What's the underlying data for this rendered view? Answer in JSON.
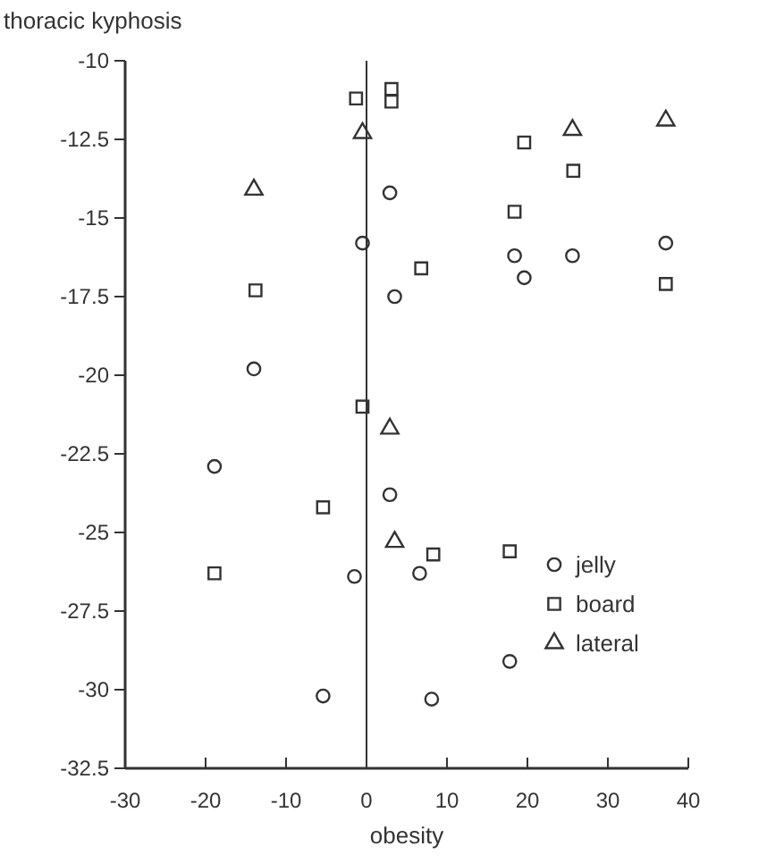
{
  "chart_data": {
    "type": "scatter",
    "xlabel": "obesity",
    "ylabel": "thoracic kyphosis",
    "xlim": [
      -30,
      40
    ],
    "xticks": [
      -30,
      -20,
      -10,
      0,
      10,
      20,
      30,
      40
    ],
    "ylim": [
      -32.5,
      -10
    ],
    "yticks": [
      -32.5,
      -30,
      -27.5,
      -25,
      -22.5,
      -20,
      -17.5,
      -15,
      -12.5,
      -10
    ],
    "grid": false,
    "legend": "bottom right",
    "ref_lines": [
      {
        "axis": "x",
        "value": 0,
        "color": "#333333"
      }
    ],
    "series": [
      {
        "name": "jelly",
        "color": "#333333",
        "marker": "circle",
        "x": [
          -14,
          -0.5,
          2.9,
          3.5,
          18.4,
          19.6,
          25.6,
          37.2,
          -18.9,
          -1.5,
          -5.4,
          2.9,
          6.6,
          17.8,
          8.1
        ],
        "values": [
          -19.8,
          -15.8,
          -14.2,
          -17.5,
          -16.2,
          -16.9,
          -16.2,
          -15.8,
          -22.9,
          -26.4,
          -30.2,
          -23.8,
          -26.3,
          -29.1,
          -30.3
        ]
      },
      {
        "name": "board",
        "color": "#333333",
        "marker": "square",
        "x": [
          -1.3,
          3.1,
          3.1,
          19.6,
          25.7,
          18.4,
          6.8,
          37.2,
          -13.8,
          -0.5,
          -5.4,
          -18.9,
          8.3,
          17.8
        ],
        "values": [
          -11.2,
          -10.9,
          -11.3,
          -12.6,
          -13.5,
          -14.8,
          -16.6,
          -17.1,
          -17.3,
          -21,
          -24.2,
          -26.3,
          -25.7,
          -25.6
        ]
      },
      {
        "name": "lateral",
        "color": "#333333",
        "marker": "triangle",
        "x": [
          -0.5,
          -14,
          25.6,
          37.2,
          2.9,
          3.5
        ],
        "values": [
          -12.3,
          -14.1,
          -12.2,
          -11.9,
          -21.7,
          -25.3
        ]
      }
    ]
  }
}
